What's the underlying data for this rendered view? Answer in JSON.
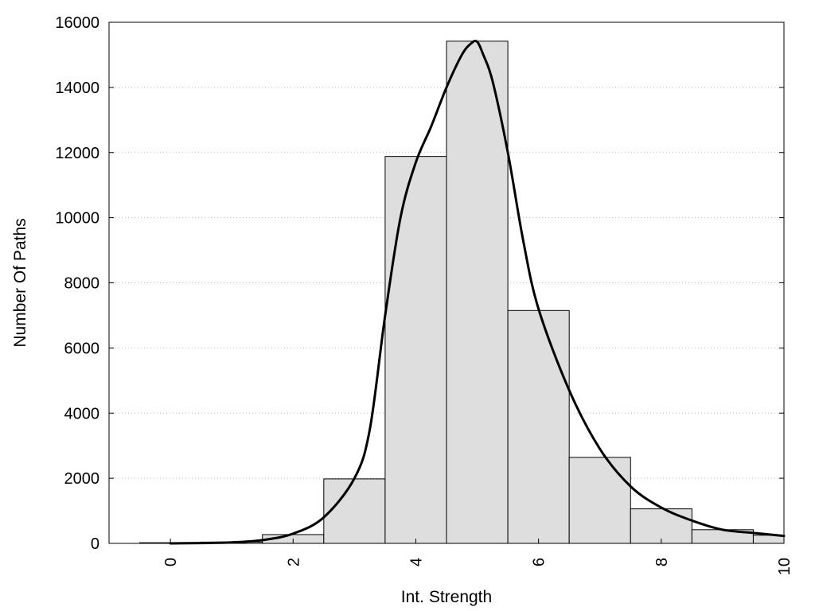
{
  "chart_data": {
    "type": "bar",
    "xlabel": "Int. Strength",
    "ylabel": "Number Of Paths",
    "xlim": [
      -1,
      10
    ],
    "ylim": [
      0,
      16000
    ],
    "xticks": [
      0,
      2,
      4,
      6,
      8,
      10
    ],
    "yticks": [
      0,
      2000,
      4000,
      6000,
      8000,
      10000,
      12000,
      14000,
      16000
    ],
    "grid": "horizontal-dotted",
    "bar_fill": "#dedede",
    "bar_stroke": "#000000",
    "bars": [
      {
        "x": 0,
        "value": 20
      },
      {
        "x": 1,
        "value": 40
      },
      {
        "x": 2,
        "value": 270
      },
      {
        "x": 3,
        "value": 1980
      },
      {
        "x": 4,
        "value": 11880
      },
      {
        "x": 5,
        "value": 15420
      },
      {
        "x": 6,
        "value": 7150
      },
      {
        "x": 7,
        "value": 2640
      },
      {
        "x": 8,
        "value": 1060
      },
      {
        "x": 9,
        "value": 420
      },
      {
        "x": 10,
        "value": 250
      }
    ],
    "bar_width": 1,
    "curve": {
      "x": [
        0,
        0.5,
        1,
        1.5,
        2,
        2.5,
        3,
        3.25,
        3.5,
        3.75,
        4,
        4.25,
        4.5,
        4.75,
        4.9,
        5,
        5.1,
        5.25,
        5.5,
        5.75,
        6,
        6.5,
        7,
        7.5,
        8,
        8.5,
        9,
        9.5,
        10
      ],
      "y": [
        0,
        10,
        30,
        100,
        300,
        800,
        2000,
        3500,
        7000,
        10000,
        11700,
        12800,
        14000,
        15000,
        15350,
        15400,
        15000,
        14200,
        12000,
        9300,
        7200,
        4700,
        2900,
        1750,
        1100,
        700,
        420,
        320,
        230
      ]
    }
  }
}
